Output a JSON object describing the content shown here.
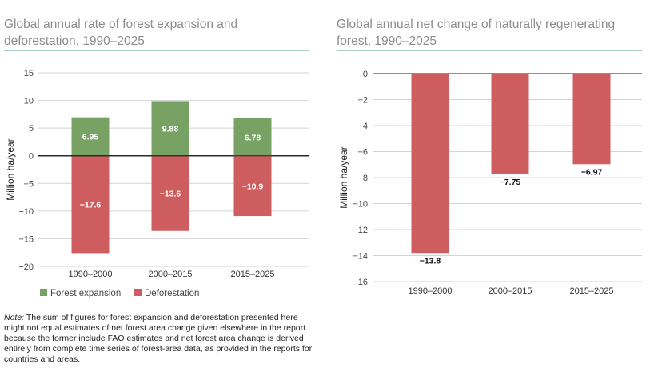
{
  "chart_data": [
    {
      "type": "bar",
      "stacked": true,
      "title": "Global annual rate of forest expansion and deforestation, 1990–2025",
      "ylabel": "Million ha/year",
      "ylim": [
        -20,
        15
      ],
      "yticks": [
        15,
        10,
        5,
        0,
        -5,
        -10,
        -15,
        -20
      ],
      "grid": true,
      "legend_position": "bottom-left",
      "categories": [
        "1990–2000",
        "2000–2015",
        "2015–2025"
      ],
      "series": [
        {
          "name": "Forest expansion",
          "color": "#78a264",
          "values": [
            6.95,
            9.88,
            6.78
          ],
          "labels": [
            "6.95",
            "9.88",
            "6.78"
          ]
        },
        {
          "name": "Deforestation",
          "color": "#cd5d5e",
          "values": [
            -17.6,
            -13.6,
            -10.9
          ],
          "labels": [
            "-17.6",
            "-13.6",
            "-10.9"
          ]
        }
      ]
    },
    {
      "type": "bar",
      "title": "Global annual net change of naturally regenerating forest, 1990–2025",
      "ylabel": "Million ha/year",
      "ylim": [
        -16,
        0
      ],
      "yticks": [
        0,
        -2,
        -4,
        -6,
        -8,
        -10,
        -12,
        -14,
        -16
      ],
      "grid": true,
      "categories": [
        "1990–2000",
        "2000–2015",
        "2015–2025"
      ],
      "series": [
        {
          "color": "#cd5d5e",
          "values": [
            -13.8,
            -7.75,
            -6.97
          ],
          "labels": [
            "-13.8",
            "-7.75",
            "-6.97"
          ]
        }
      ]
    }
  ],
  "note": {
    "prefix": "Note:",
    "text": " The sum of figures for forest expansion and deforestation presented here might not equal estimates of net forest area change given elsewhere in the report because the former include FAO estimates and net forest area change is derived entirely from complete time series of forest-area data, as provided in the reports for countries and areas."
  }
}
